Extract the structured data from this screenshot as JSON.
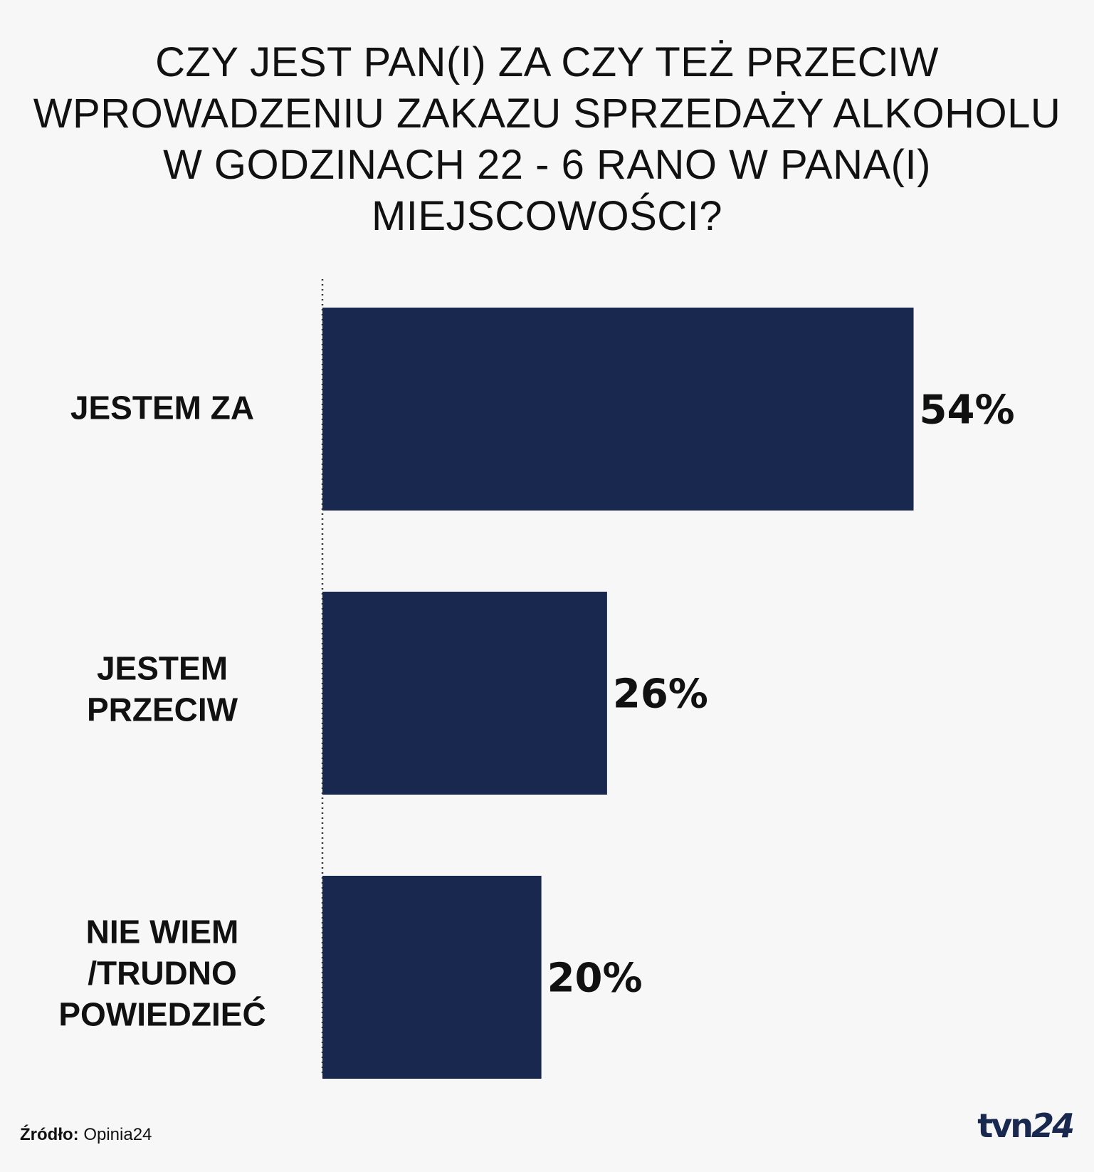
{
  "chart_data": {
    "type": "bar",
    "orientation": "horizontal",
    "title": "CZY JEST PAN(I) ZA CZY TEŻ PRZECIW WPROWADZENIU ZAKAZU SPRZEDAŻY ALKOHOLU W GODZINACH 22 - 6 RANO W PANA(I) MIEJSCOWOŚCI?",
    "title_lines": [
      "CZY JEST PAN(I) ZA CZY TEŻ PRZECIW",
      "WPROWADZENIU ZAKAZU SPRZEDAŻY ALKOHOLU",
      "W GODZINACH 22 - 6 RANO W PANA(I)",
      "MIEJSCOWOŚCI?"
    ],
    "categories": [
      "JESTEM ZA",
      "JESTEM PRZECIW",
      "NIE WIEM /TRUDNO POWIEDZIEĆ"
    ],
    "category_lines": [
      [
        "JESTEM ZA"
      ],
      [
        "JESTEM",
        "PRZECIW"
      ],
      [
        "NIE WIEM",
        "/TRUDNO",
        "POWIEDZIEĆ"
      ]
    ],
    "values": [
      54,
      26,
      20
    ],
    "value_labels": [
      "54%",
      "26%",
      "20%"
    ],
    "xlim": [
      0,
      100
    ],
    "grid": false,
    "legend": "none",
    "bar_color": "#18284f",
    "axis_color": "#333333"
  },
  "footer": {
    "source_key": "Źródło:",
    "source_value": "Opinia24"
  },
  "brand": {
    "name_part": "tvn",
    "number_part": "24",
    "color": "#18284f"
  }
}
